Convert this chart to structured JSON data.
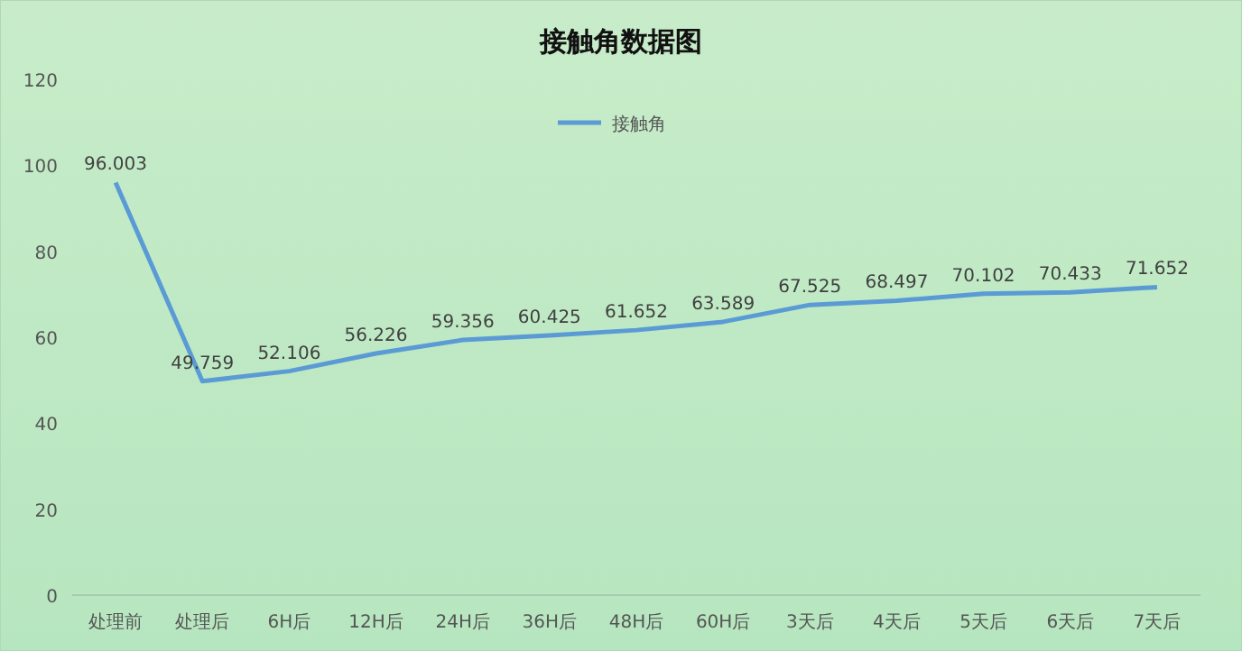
{
  "chart_data": {
    "type": "line",
    "title": "接触角数据图",
    "categories": [
      "处理前",
      "处理后",
      "6H后",
      "12H后",
      "24H后",
      "36H后",
      "48H后",
      "60H后",
      "3天后",
      "4天后",
      "5天后",
      "6天后",
      "7天后"
    ],
    "series": [
      {
        "name": "接触角",
        "color": "#5b9bd5",
        "values": [
          96.003,
          49.759,
          52.106,
          56.226,
          59.356,
          60.425,
          61.652,
          63.589,
          67.525,
          68.497,
          70.102,
          70.433,
          71.652
        ]
      }
    ],
    "ylim": [
      0,
      120
    ],
    "yticks": [
      0,
      20,
      40,
      60,
      80,
      100,
      120
    ],
    "data_labels": true,
    "legend": "top",
    "grid": false,
    "marker": "none",
    "line_style": "solid"
  }
}
